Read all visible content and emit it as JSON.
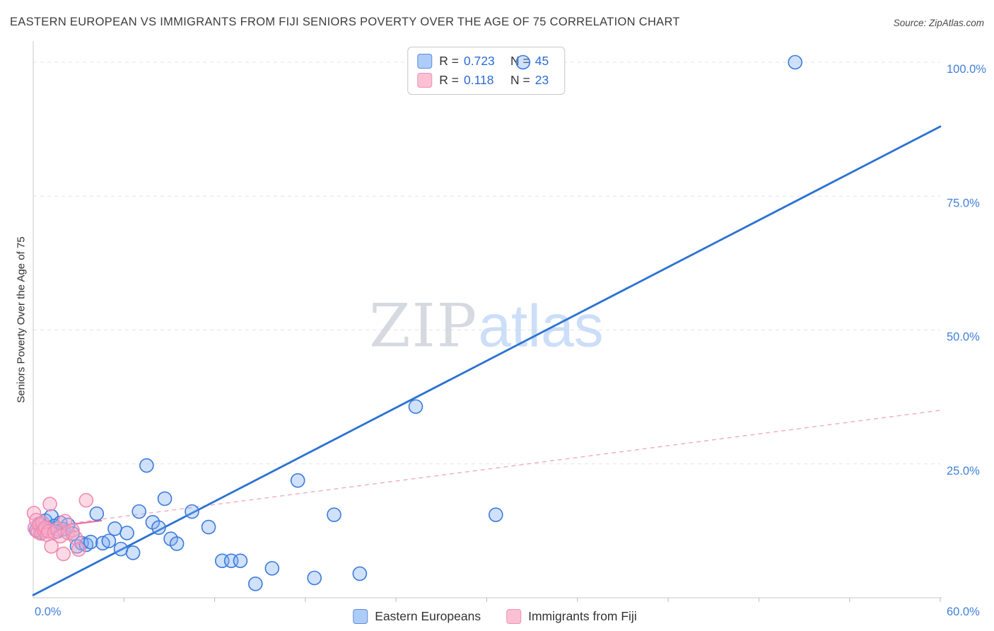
{
  "header": {
    "title": "EASTERN EUROPEAN VS IMMIGRANTS FROM FIJI SENIORS POVERTY OVER THE AGE OF 75 CORRELATION CHART",
    "source": "Source: ZipAtlas.com"
  },
  "axes": {
    "y_label": "Seniors Poverty Over the Age of 75"
  },
  "watermark": {
    "zip": "ZIP",
    "atlas": "atlas"
  },
  "legend_box": {
    "rows": [
      {
        "series": "Eastern Europeans",
        "r_label": "R =",
        "r_value": "0.723",
        "n_label": "N =",
        "n_value": "45"
      },
      {
        "series": "Immigrants from Fiji",
        "r_label": "R =",
        "r_value": "0.118",
        "n_label": "N =",
        "n_value": "23"
      }
    ]
  },
  "bottom_legend": {
    "items": [
      {
        "label": "Eastern Europeans"
      },
      {
        "label": "Immigrants from Fiji"
      }
    ]
  },
  "colors": {
    "accent_blue": "#2a72d3",
    "accent_pink": "#ec6f9f",
    "axis_label_blue": "#4180d8",
    "grid": "#e4e4e4",
    "axis_line": "#c9c9c9"
  },
  "chart_data": {
    "type": "scatter",
    "title": "EASTERN EUROPEAN VS IMMIGRANTS FROM FIJI SENIORS POVERTY OVER THE AGE OF 75 CORRELATION CHART",
    "xlabel": "",
    "ylabel": "Seniors Poverty Over the Age of 75",
    "x_range": [
      0,
      60
    ],
    "y_range": [
      0,
      100
    ],
    "grid": "horizontal-dashed",
    "legend_position": "top-center",
    "x_edge_labels": [
      {
        "value": 0,
        "label": "0.0%"
      },
      {
        "value": 60,
        "label": "60.0%"
      }
    ],
    "y_ticks": [
      {
        "value": 100,
        "label": "100.0%"
      },
      {
        "value": 75,
        "label": "75.0%"
      },
      {
        "value": 50,
        "label": "50.0%"
      },
      {
        "value": 25,
        "label": "25.0%"
      }
    ],
    "x_ticks": [
      6,
      12,
      18,
      24,
      30,
      36,
      42,
      48,
      54,
      60
    ],
    "series": [
      {
        "name": "Eastern Europeans",
        "R": 0.723,
        "N": 45,
        "stroke": "#3b7ad9",
        "fill": "rgba(120,170,245,0.35)",
        "points": [
          [
            0.2,
            12.6
          ],
          [
            0.4,
            13.8
          ],
          [
            0.6,
            12.2
          ],
          [
            0.8,
            14.4
          ],
          [
            1.0,
            13.0
          ],
          [
            1.2,
            15.2
          ],
          [
            1.4,
            13.4
          ],
          [
            1.6,
            12.4
          ],
          [
            1.8,
            14.0
          ],
          [
            2.0,
            12.8
          ],
          [
            2.3,
            13.6
          ],
          [
            2.6,
            12.0
          ],
          [
            2.9,
            9.6
          ],
          [
            3.2,
            10.2
          ],
          [
            3.5,
            9.9
          ],
          [
            3.8,
            10.4
          ],
          [
            4.2,
            15.7
          ],
          [
            4.6,
            10.2
          ],
          [
            5.0,
            10.6
          ],
          [
            5.4,
            12.9
          ],
          [
            5.8,
            9.1
          ],
          [
            6.2,
            12.1
          ],
          [
            6.6,
            8.4
          ],
          [
            7.0,
            16.1
          ],
          [
            7.5,
            24.7
          ],
          [
            7.9,
            14.1
          ],
          [
            8.3,
            13.1
          ],
          [
            8.7,
            18.5
          ],
          [
            9.1,
            11.0
          ],
          [
            9.5,
            10.1
          ],
          [
            10.5,
            16.1
          ],
          [
            11.6,
            13.2
          ],
          [
            12.5,
            6.9
          ],
          [
            13.1,
            6.9
          ],
          [
            13.7,
            6.9
          ],
          [
            14.7,
            2.6
          ],
          [
            15.8,
            5.5
          ],
          [
            17.5,
            21.9
          ],
          [
            18.6,
            3.7
          ],
          [
            19.9,
            15.5
          ],
          [
            21.6,
            4.5
          ],
          [
            25.3,
            35.7
          ],
          [
            30.6,
            15.5
          ],
          [
            32.4,
            100.0
          ],
          [
            50.4,
            100.0
          ]
        ]
      },
      {
        "name": "Immigrants from Fiji",
        "R": 0.118,
        "N": 23,
        "stroke": "#f08bb0",
        "fill": "rgba(250,170,200,0.45)",
        "points": [
          [
            0.05,
            15.8
          ],
          [
            0.1,
            13.0
          ],
          [
            0.2,
            14.5
          ],
          [
            0.3,
            12.3
          ],
          [
            0.4,
            13.6
          ],
          [
            0.5,
            12.0
          ],
          [
            0.6,
            14.0
          ],
          [
            0.7,
            12.6
          ],
          [
            0.8,
            13.1
          ],
          [
            0.9,
            11.8
          ],
          [
            1.0,
            12.4
          ],
          [
            1.1,
            17.5
          ],
          [
            1.2,
            9.6
          ],
          [
            1.4,
            12.2
          ],
          [
            1.6,
            12.8
          ],
          [
            1.8,
            11.5
          ],
          [
            2.0,
            8.2
          ],
          [
            2.1,
            14.3
          ],
          [
            2.3,
            12.1
          ],
          [
            2.6,
            12.6
          ],
          [
            2.8,
            11.2
          ],
          [
            3.0,
            9.0
          ],
          [
            3.5,
            18.2
          ]
        ]
      }
    ],
    "trend_lines": [
      {
        "series": "Eastern Europeans",
        "style": "solid",
        "color": "#2a72d3",
        "width": 2.8,
        "from": [
          0,
          0.5
        ],
        "to": [
          60,
          88
        ]
      },
      {
        "series": "Immigrants from Fiji",
        "style": "solid",
        "color": "#ec6f9f",
        "width": 2.2,
        "from": [
          0,
          12.8
        ],
        "to": [
          4.5,
          14.4
        ]
      },
      {
        "series": "Immigrants from Fiji",
        "style": "dashed",
        "color": "#f2aac4",
        "width": 1.4,
        "from": [
          0,
          13.0
        ],
        "to": [
          60,
          35.0
        ]
      }
    ]
  }
}
